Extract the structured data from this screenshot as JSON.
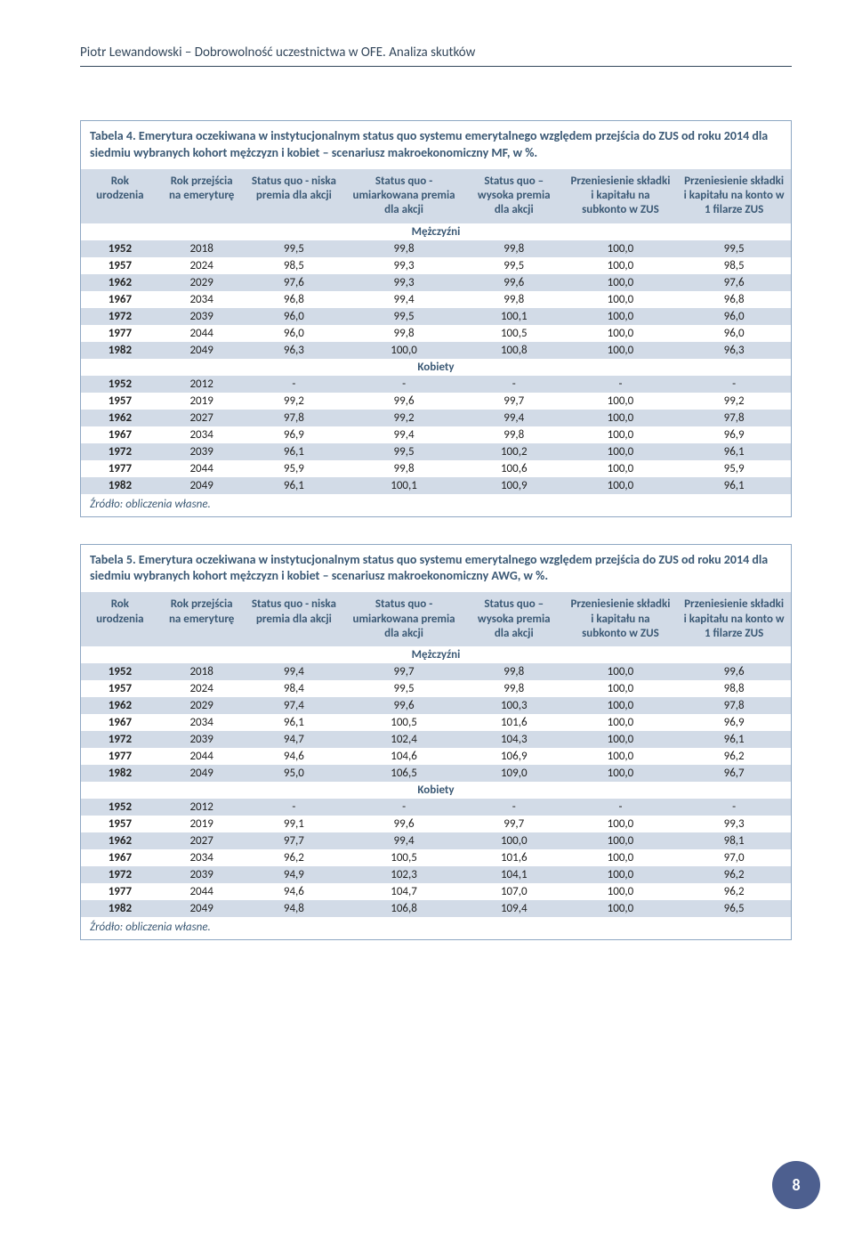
{
  "header": "Piotr Lewandowski – Dobrowolność uczestnictwa w OFE. Analiza skutków",
  "page_number": "8",
  "columns": [
    "Rok urodzenia",
    "Rok przejścia na emeryturę",
    "Status quo - niska premia dla akcji",
    "Status quo - umiarkowana premia dla akcji",
    "Status quo – wysoka premia dla akcji",
    "Przeniesienie składki i kapitału na subkonto w ZUS",
    "Przeniesienie składki i kapitału na konto w 1 filarze ZUS"
  ],
  "section_labels": {
    "men": "Mężczyźni",
    "women": "Kobiety"
  },
  "source": "Źródło: obliczenia własne.",
  "table4": {
    "caption": "Tabela 4. Emerytura oczekiwana w instytucjonalnym status quo systemu emerytalnego względem przejścia do ZUS od roku 2014 dla siedmiu wybranych kohort mężczyzn i kobiet – scenariusz makroekonomiczny MF, w %.",
    "men": [
      [
        "1952",
        "2018",
        "99,5",
        "99,8",
        "99,8",
        "100,0",
        "99,5"
      ],
      [
        "1957",
        "2024",
        "98,5",
        "99,3",
        "99,5",
        "100,0",
        "98,5"
      ],
      [
        "1962",
        "2029",
        "97,6",
        "99,3",
        "99,6",
        "100,0",
        "97,6"
      ],
      [
        "1967",
        "2034",
        "96,8",
        "99,4",
        "99,8",
        "100,0",
        "96,8"
      ],
      [
        "1972",
        "2039",
        "96,0",
        "99,5",
        "100,1",
        "100,0",
        "96,0"
      ],
      [
        "1977",
        "2044",
        "96,0",
        "99,8",
        "100,5",
        "100,0",
        "96,0"
      ],
      [
        "1982",
        "2049",
        "96,3",
        "100,0",
        "100,8",
        "100,0",
        "96,3"
      ]
    ],
    "women": [
      [
        "1952",
        "2012",
        "-",
        "-",
        "-",
        "-",
        "-"
      ],
      [
        "1957",
        "2019",
        "99,2",
        "99,6",
        "99,7",
        "100,0",
        "99,2"
      ],
      [
        "1962",
        "2027",
        "97,8",
        "99,2",
        "99,4",
        "100,0",
        "97,8"
      ],
      [
        "1967",
        "2034",
        "96,9",
        "99,4",
        "99,8",
        "100,0",
        "96,9"
      ],
      [
        "1972",
        "2039",
        "96,1",
        "99,5",
        "100,2",
        "100,0",
        "96,1"
      ],
      [
        "1977",
        "2044",
        "95,9",
        "99,8",
        "100,6",
        "100,0",
        "95,9"
      ],
      [
        "1982",
        "2049",
        "96,1",
        "100,1",
        "100,9",
        "100,0",
        "96,1"
      ]
    ]
  },
  "table5": {
    "caption": "Tabela 5. Emerytura oczekiwana w instytucjonalnym status quo systemu emerytalnego względem przejścia do ZUS od roku 2014 dla siedmiu wybranych kohort mężczyzn i kobiet – scenariusz makroekonomiczny AWG, w %.",
    "men": [
      [
        "1952",
        "2018",
        "99,4",
        "99,7",
        "99,8",
        "100,0",
        "99,6"
      ],
      [
        "1957",
        "2024",
        "98,4",
        "99,5",
        "99,8",
        "100,0",
        "98,8"
      ],
      [
        "1962",
        "2029",
        "97,4",
        "99,6",
        "100,3",
        "100,0",
        "97,8"
      ],
      [
        "1967",
        "2034",
        "96,1",
        "100,5",
        "101,6",
        "100,0",
        "96,9"
      ],
      [
        "1972",
        "2039",
        "94,7",
        "102,4",
        "104,3",
        "100,0",
        "96,1"
      ],
      [
        "1977",
        "2044",
        "94,6",
        "104,6",
        "106,9",
        "100,0",
        "96,2"
      ],
      [
        "1982",
        "2049",
        "95,0",
        "106,5",
        "109,0",
        "100,0",
        "96,7"
      ]
    ],
    "women": [
      [
        "1952",
        "2012",
        "-",
        "-",
        "-",
        "-",
        "-"
      ],
      [
        "1957",
        "2019",
        "99,1",
        "99,6",
        "99,7",
        "100,0",
        "99,3"
      ],
      [
        "1962",
        "2027",
        "97,7",
        "99,4",
        "100,0",
        "100,0",
        "98,1"
      ],
      [
        "1967",
        "2034",
        "96,2",
        "100,5",
        "101,6",
        "100,0",
        "97,0"
      ],
      [
        "1972",
        "2039",
        "94,9",
        "102,3",
        "104,1",
        "100,0",
        "96,2"
      ],
      [
        "1977",
        "2044",
        "94,6",
        "104,7",
        "107,0",
        "100,0",
        "96,2"
      ],
      [
        "1982",
        "2049",
        "94,8",
        "106,8",
        "109,4",
        "100,0",
        "96,5"
      ]
    ]
  },
  "colors": {
    "header_bg": "#d2dbe7",
    "accent_text": "#3b5975",
    "border": "#8ea7c3",
    "badge_bg": "#4d5f8f"
  }
}
